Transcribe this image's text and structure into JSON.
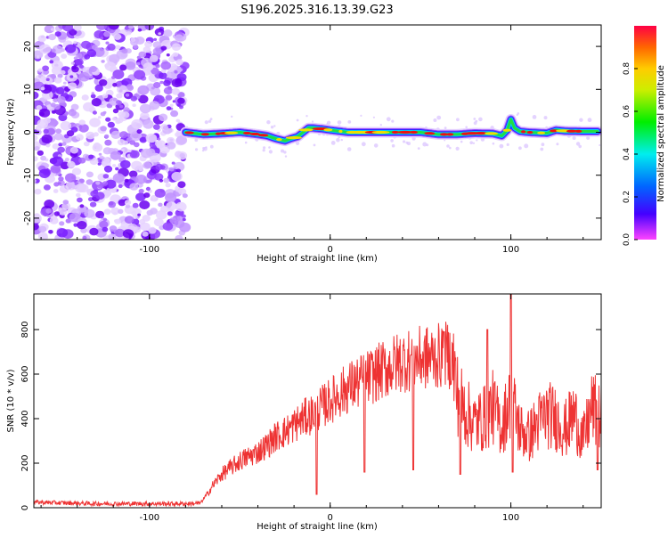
{
  "title": "S196.2025.316.13.39.G23",
  "chart_data": [
    {
      "type": "heatmap",
      "title": "S196.2025.316.13.39.G23",
      "xlabel": "Height of straight line (km)",
      "ylabel": "Frequency (Hz)",
      "xlim": [
        -164,
        150
      ],
      "ylim": [
        -25,
        25
      ],
      "xticks": [
        -100,
        0,
        100
      ],
      "yticks": [
        -20,
        -10,
        0,
        10,
        20
      ],
      "colorbar": {
        "label": "Normalized spectral amplitude",
        "range": [
          0,
          1
        ],
        "ticks": [
          0,
          0.2,
          0.4,
          0.6,
          0.8
        ]
      },
      "noise_region_x": [
        -164,
        -80
      ],
      "ridge": {
        "x": [
          -80,
          -70,
          -60,
          -50,
          -40,
          -35,
          -30,
          -25,
          -22,
          -18,
          -15,
          -12,
          -10,
          -5,
          0,
          10,
          20,
          30,
          40,
          50,
          60,
          70,
          80,
          90,
          95,
          98,
          100,
          102,
          105,
          110,
          120,
          125,
          130,
          140,
          148
        ],
        "freq": [
          0,
          -0.5,
          -0.3,
          0,
          -0.5,
          -0.8,
          -1.5,
          -2,
          -1.5,
          -1,
          0,
          1,
          1,
          0.8,
          0.5,
          0,
          0,
          0,
          0,
          0,
          -0.5,
          -0.5,
          -0.2,
          -0.3,
          -0.8,
          0.5,
          3,
          1,
          0.2,
          0,
          -0.2,
          0.5,
          0.3,
          0.2,
          0.2
        ]
      }
    },
    {
      "type": "line",
      "xlabel": "Height of straight line (km)",
      "ylabel": "SNR (10 * v/v)",
      "xlim": [
        -164,
        150
      ],
      "ylim": [
        0,
        960
      ],
      "xticks": [
        -100,
        0,
        100
      ],
      "yticks": [
        0,
        200,
        400,
        600,
        800
      ],
      "series": [
        {
          "name": "SNR",
          "color": "#ee3333",
          "x": [
            -164,
            -150,
            -140,
            -130,
            -120,
            -110,
            -100,
            -90,
            -80,
            -72,
            -68,
            -65,
            -60,
            -55,
            -50,
            -45,
            -40,
            -35,
            -30,
            -25,
            -20,
            -15,
            -10,
            -5,
            0,
            10,
            20,
            30,
            40,
            50,
            60,
            65,
            68,
            70,
            75,
            80,
            85,
            90,
            95,
            100,
            105,
            110,
            115,
            120,
            125,
            130,
            135,
            140,
            145,
            150
          ],
          "values": [
            25,
            22,
            20,
            18,
            18,
            18,
            18,
            18,
            18,
            20,
            60,
            100,
            150,
            180,
            210,
            230,
            250,
            280,
            320,
            340,
            370,
            400,
            420,
            450,
            480,
            540,
            580,
            620,
            660,
            670,
            680,
            690,
            660,
            520,
            430,
            380,
            400,
            450,
            360,
            500,
            350,
            320,
            380,
            420,
            400,
            350,
            420,
            300,
            450,
            400
          ]
        }
      ],
      "spikes_down": [
        {
          "x": -7.5,
          "y": 60
        },
        {
          "x": 19,
          "y": 160
        },
        {
          "x": 46,
          "y": 170
        },
        {
          "x": 72,
          "y": 150
        },
        {
          "x": 101,
          "y": 160
        },
        {
          "x": 148,
          "y": 170
        }
      ],
      "spikes_up": [
        {
          "x": 100,
          "y": 960
        },
        {
          "x": 87,
          "y": 800
        },
        {
          "x": 63,
          "y": 790
        }
      ]
    }
  ]
}
